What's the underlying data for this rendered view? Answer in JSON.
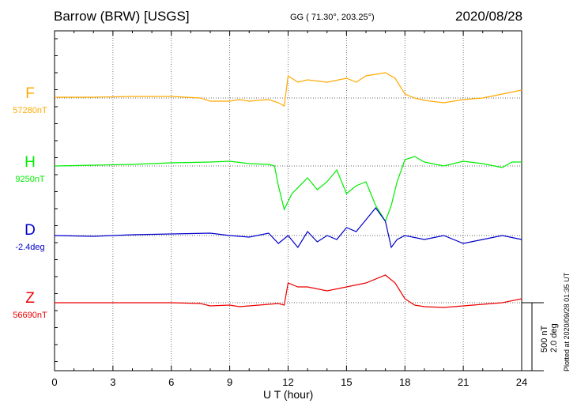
{
  "header": {
    "station": "Barrow (BRW)  [USGS]",
    "coords": "GG ( 71.30°, 203.25°)",
    "date": "2020/08/28"
  },
  "footer": {
    "plotted": "Plotted at 2020/09/28 01:35 UT",
    "scale_nt": "500 nT",
    "scale_deg": "2.0 deg"
  },
  "chart_data": {
    "type": "line",
    "title": "",
    "xlabel": "U T (hour)",
    "ylabel": "",
    "xlim": [
      0,
      24
    ],
    "xticks": [
      "0",
      "3",
      "6",
      "9",
      "12",
      "15",
      "18",
      "21",
      "24"
    ],
    "grid": true,
    "scale_bar": "500 nT / 2.0 deg",
    "series": [
      {
        "name": "F",
        "baseline_label": "57280nT",
        "color": "#ffaa00",
        "points": [
          [
            0,
            1
          ],
          [
            2,
            1
          ],
          [
            4,
            2
          ],
          [
            6,
            2
          ],
          [
            7.5,
            0
          ],
          [
            8,
            -4
          ],
          [
            9,
            -4
          ],
          [
            9.5,
            -2
          ],
          [
            10,
            -4
          ],
          [
            11,
            -2
          ],
          [
            11.5,
            -6
          ],
          [
            11.8,
            -10
          ],
          [
            12,
            28
          ],
          [
            12.5,
            20
          ],
          [
            13,
            23
          ],
          [
            14,
            20
          ],
          [
            15,
            25
          ],
          [
            15.5,
            20
          ],
          [
            16,
            28
          ],
          [
            17,
            32
          ],
          [
            17.5,
            25
          ],
          [
            18,
            5
          ],
          [
            18.5,
            0
          ],
          [
            19,
            -3
          ],
          [
            20,
            -6
          ],
          [
            21,
            -2
          ],
          [
            22,
            0
          ],
          [
            23,
            5
          ],
          [
            24,
            10
          ]
        ]
      },
      {
        "name": "H",
        "baseline_label": "9250nT",
        "color": "#00ee00",
        "points": [
          [
            0,
            0
          ],
          [
            2,
            1
          ],
          [
            4,
            2
          ],
          [
            6,
            4
          ],
          [
            8,
            5
          ],
          [
            9,
            6
          ],
          [
            10,
            3
          ],
          [
            11,
            2
          ],
          [
            11.3,
            0
          ],
          [
            11.5,
            -25
          ],
          [
            11.8,
            -55
          ],
          [
            12.2,
            -35
          ],
          [
            13,
            -15
          ],
          [
            13.5,
            -30
          ],
          [
            14,
            -20
          ],
          [
            14.5,
            -5
          ],
          [
            15,
            -35
          ],
          [
            15.5,
            -25
          ],
          [
            16,
            -20
          ],
          [
            16.5,
            -50
          ],
          [
            17,
            -70
          ],
          [
            17.3,
            -50
          ],
          [
            17.6,
            -20
          ],
          [
            18,
            8
          ],
          [
            18.5,
            12
          ],
          [
            19,
            5
          ],
          [
            20,
            0
          ],
          [
            21,
            6
          ],
          [
            22,
            3
          ],
          [
            23,
            -2
          ],
          [
            23.5,
            5
          ],
          [
            24,
            5
          ]
        ]
      },
      {
        "name": "D",
        "baseline_label": "-2.4deg",
        "color": "#0000cc",
        "points": [
          [
            0,
            0
          ],
          [
            2,
            -1
          ],
          [
            4,
            1
          ],
          [
            6,
            2
          ],
          [
            8,
            3
          ],
          [
            9,
            0
          ],
          [
            10,
            -2
          ],
          [
            11,
            3
          ],
          [
            11.5,
            -10
          ],
          [
            12,
            0
          ],
          [
            12.5,
            -15
          ],
          [
            13,
            5
          ],
          [
            13.5,
            -8
          ],
          [
            14,
            0
          ],
          [
            14.5,
            -5
          ],
          [
            15,
            10
          ],
          [
            15.5,
            5
          ],
          [
            16,
            20
          ],
          [
            16.5,
            35
          ],
          [
            17,
            18
          ],
          [
            17.3,
            -15
          ],
          [
            17.6,
            -5
          ],
          [
            18,
            0
          ],
          [
            19,
            -5
          ],
          [
            20,
            0
          ],
          [
            21,
            -10
          ],
          [
            22,
            -5
          ],
          [
            23,
            0
          ],
          [
            24,
            -5
          ]
        ]
      },
      {
        "name": "Z",
        "baseline_label": "56690nT",
        "color": "#ee0000",
        "points": [
          [
            0,
            0
          ],
          [
            2,
            0
          ],
          [
            4,
            0
          ],
          [
            6,
            0
          ],
          [
            7.5,
            -1
          ],
          [
            8,
            -4
          ],
          [
            9,
            -3
          ],
          [
            9.5,
            -5
          ],
          [
            10,
            -4
          ],
          [
            11,
            -2
          ],
          [
            11.5,
            -1
          ],
          [
            11.8,
            -3
          ],
          [
            12,
            25
          ],
          [
            12.5,
            20
          ],
          [
            13,
            20
          ],
          [
            14,
            15
          ],
          [
            15,
            20
          ],
          [
            16,
            25
          ],
          [
            17,
            35
          ],
          [
            17.5,
            25
          ],
          [
            18,
            5
          ],
          [
            18.5,
            -3
          ],
          [
            19,
            -5
          ],
          [
            20,
            -6
          ],
          [
            21,
            -4
          ],
          [
            22,
            -2
          ],
          [
            23,
            0
          ],
          [
            24,
            5
          ]
        ]
      }
    ]
  }
}
